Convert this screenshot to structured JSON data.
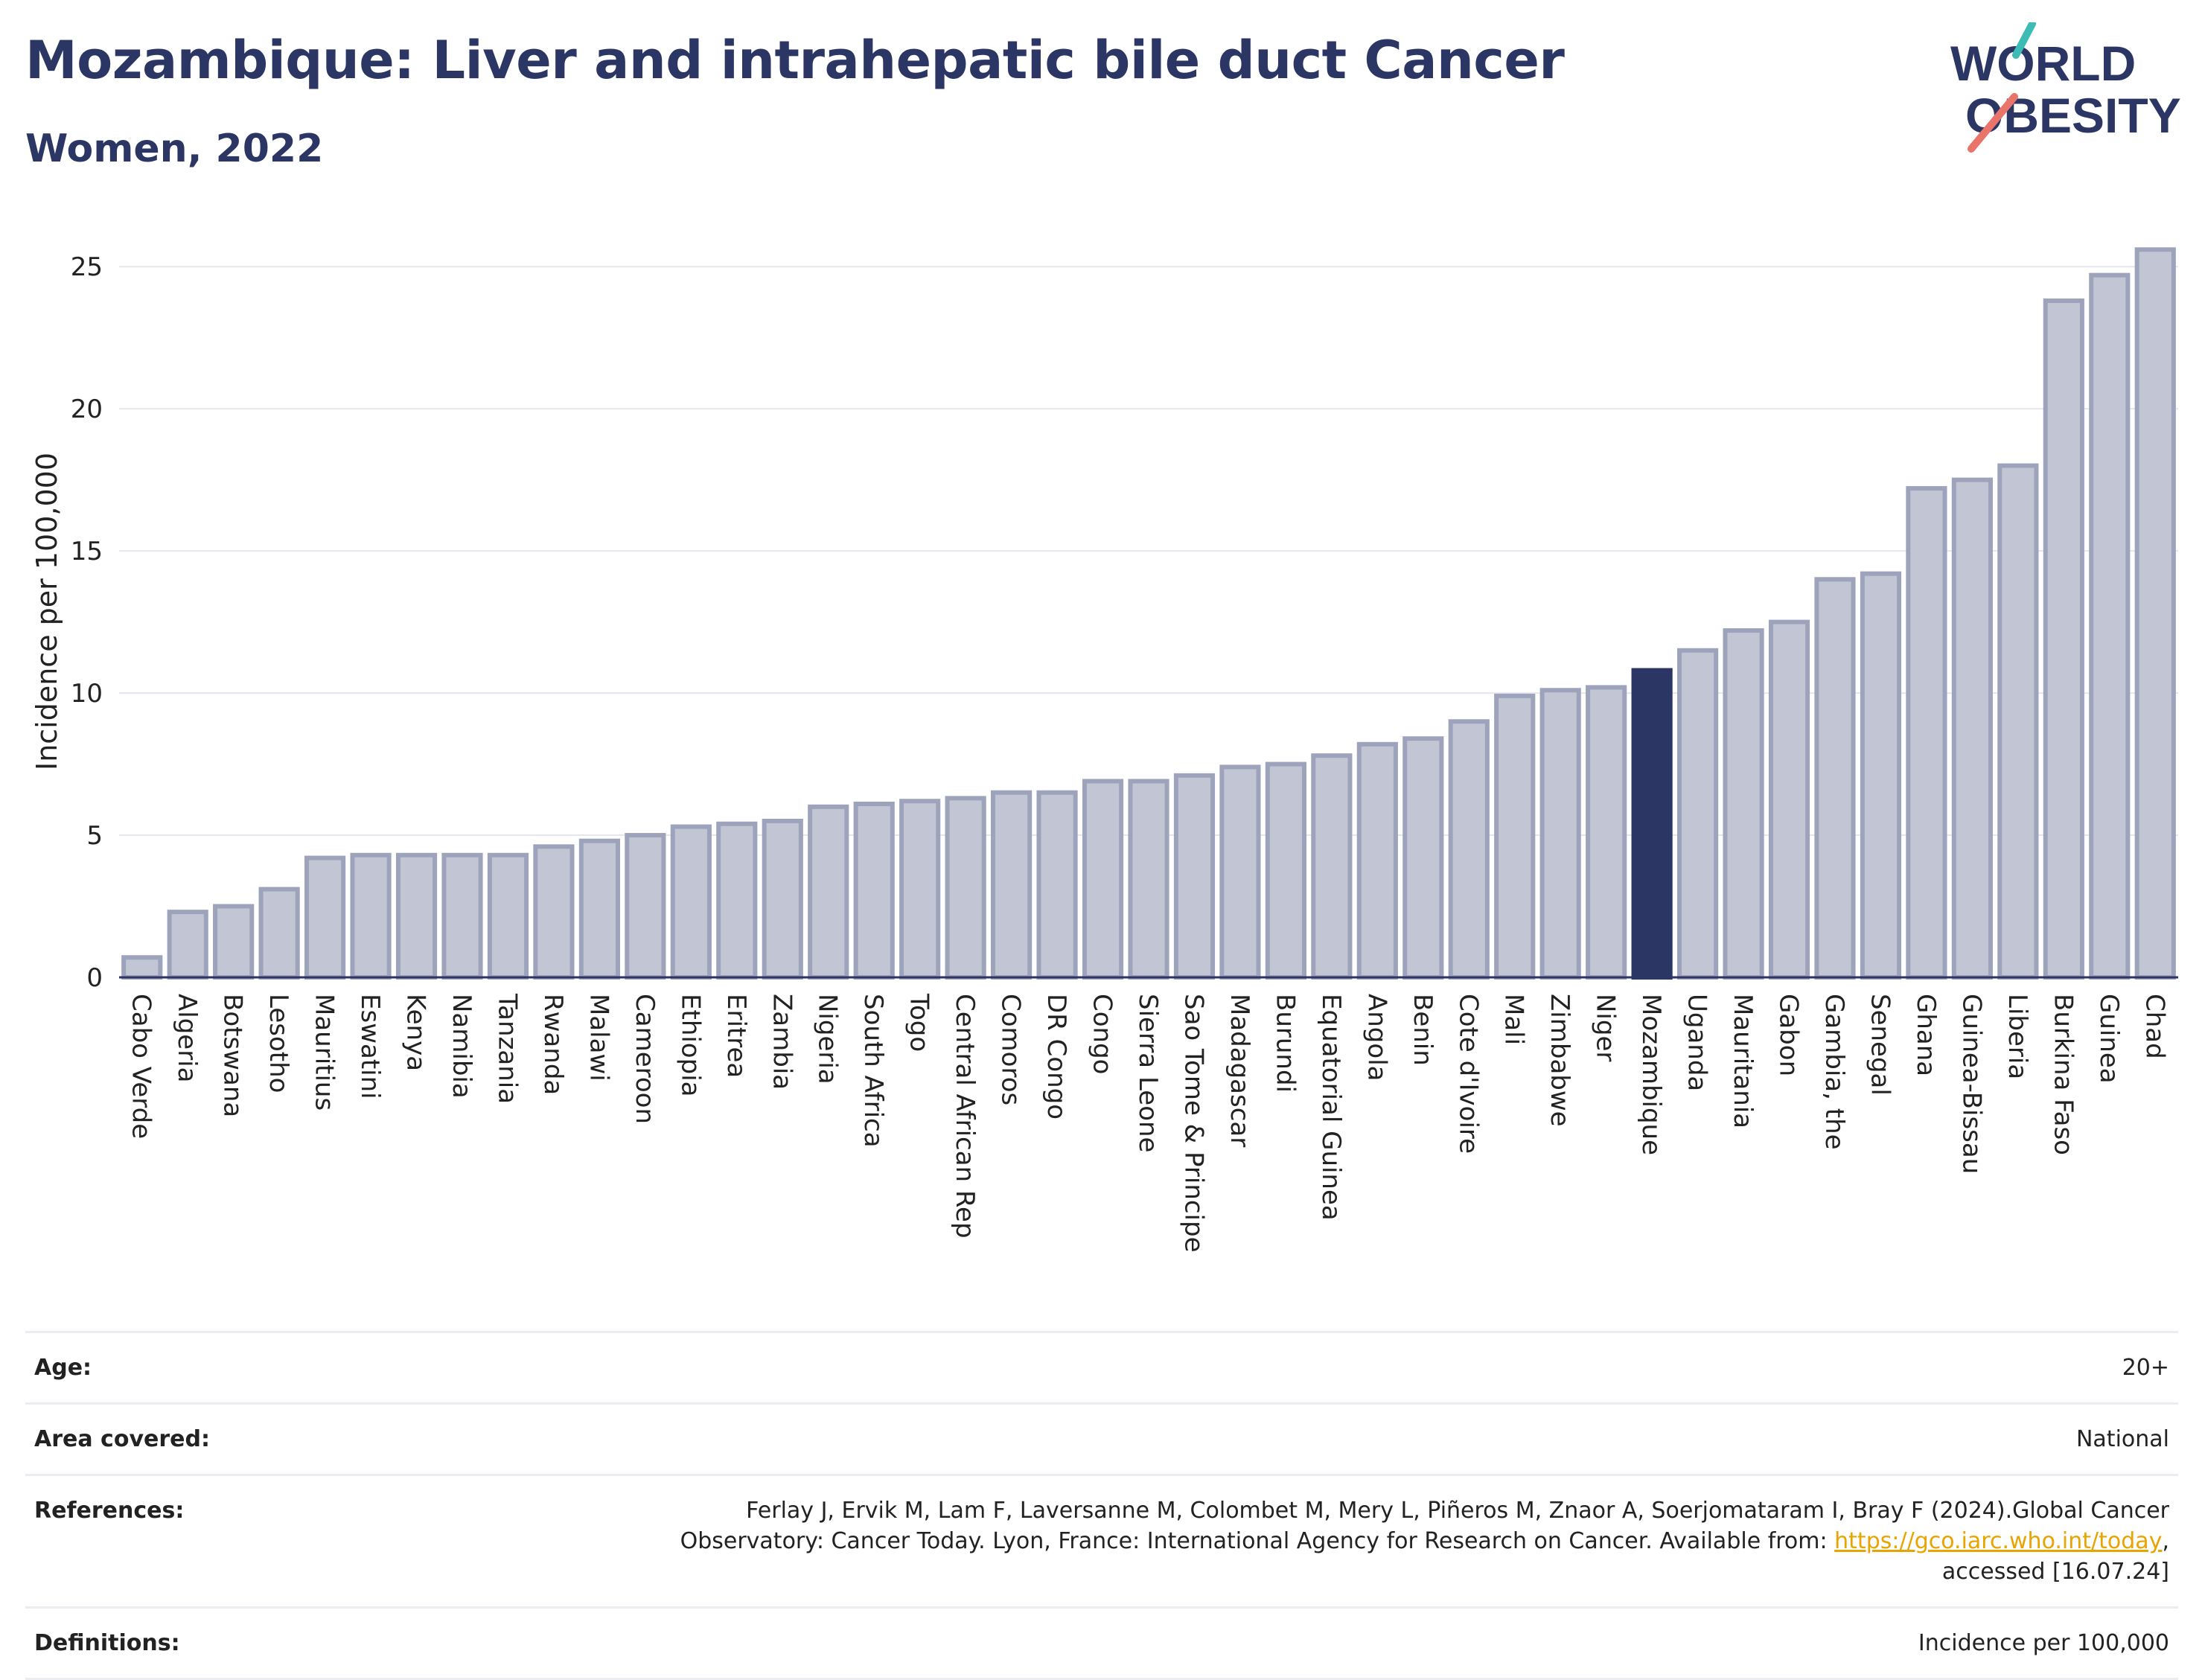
{
  "header": {
    "title": "Mozambique: Liver and intrahepatic bile duct Cancer",
    "subtitle": "Women, 2022"
  },
  "logo": {
    "line1": "WORLD",
    "line2": "OBESITY"
  },
  "colors": {
    "highlight": "#2b3664",
    "bar_fill": "#c2c6d4",
    "bar_stroke": "#9ea3bc",
    "title": "#2b3664"
  },
  "chart_data": {
    "type": "bar",
    "ylabel": "Incidence per 100,000",
    "ylim": [
      0,
      26
    ],
    "yticks": [
      0,
      5,
      10,
      15,
      20,
      25
    ],
    "grid": true,
    "highlight": "Mozambique",
    "categories": [
      "Cabo Verde",
      "Algeria",
      "Botswana",
      "Lesotho",
      "Mauritius",
      "Eswatini",
      "Kenya",
      "Namibia",
      "Tanzania",
      "Rwanda",
      "Malawi",
      "Cameroon",
      "Ethiopia",
      "Eritrea",
      "Zambia",
      "Nigeria",
      "South Africa",
      "Togo",
      "Central African Rep",
      "Comoros",
      "DR Congo",
      "Congo",
      "Sierra Leone",
      "Sao Tome & Principe",
      "Madagascar",
      "Burundi",
      "Equatorial Guinea",
      "Angola",
      "Benin",
      "Cote d'Ivoire",
      "Mali",
      "Zimbabwe",
      "Niger",
      "Mozambique",
      "Uganda",
      "Mauritania",
      "Gabon",
      "Gambia, the",
      "Senegal",
      "Ghana",
      "Guinea-Bissau",
      "Liberia",
      "Burkina Faso",
      "Guinea",
      "Chad"
    ],
    "values": [
      0.7,
      2.3,
      2.5,
      3.1,
      4.2,
      4.3,
      4.3,
      4.3,
      4.3,
      4.6,
      4.8,
      5.0,
      5.3,
      5.4,
      5.5,
      6.0,
      6.1,
      6.2,
      6.3,
      6.5,
      6.5,
      6.9,
      6.9,
      7.1,
      7.4,
      7.5,
      7.8,
      8.2,
      8.4,
      9.0,
      9.9,
      10.1,
      10.2,
      10.8,
      11.5,
      12.2,
      12.5,
      14.0,
      14.2,
      17.2,
      17.5,
      18.0,
      23.8,
      24.7,
      25.6
    ]
  },
  "meta": {
    "age_label": "Age:",
    "age_value": "20+",
    "area_label": "Area covered:",
    "area_value": "National",
    "references_label": "References:",
    "references_text": "Ferlay J, Ervik M, Lam F, Laversanne M, Colombet M, Mery L, Piñeros M, Znaor A, Soerjomataram I, Bray F (2024).Global Cancer Observatory: Cancer Today. Lyon, France: International Agency for Research on Cancer. Available from: ",
    "references_link": "https://gco.iarc.who.int/today",
    "references_tail": ", accessed [16.07.24]",
    "definitions_label": "Definitions:",
    "definitions_value": "Incidence per 100,000"
  }
}
